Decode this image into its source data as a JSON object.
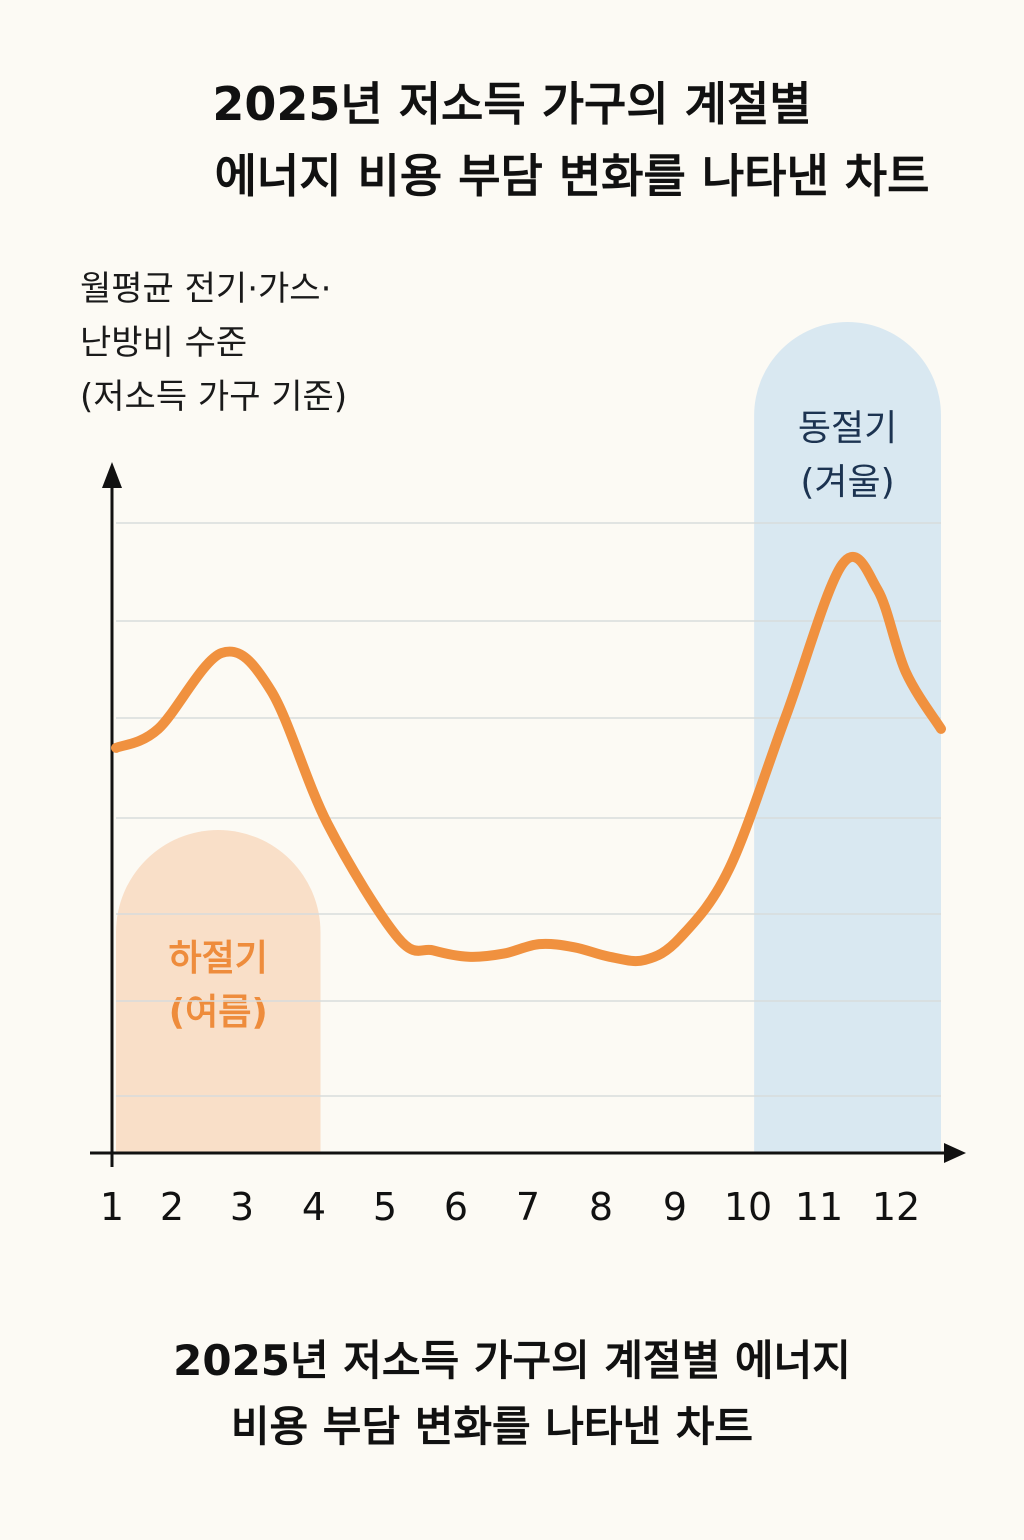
{
  "chart_data": {
    "type": "line",
    "title": "2025년 저소득 가구의 계절별 에너지 비용 부담 변화를 나타낸 차트",
    "title_lines": [
      "2025년 저소득 가구의 계절별",
      "에너지 비용 부담 변화를 나타낸 차트"
    ],
    "caption_lines": [
      "2025년 저소득 가구의 계절별 에너지",
      "비용 부담 변화를 나타낸 차트"
    ],
    "ylabel_lines": [
      "월평균 전기·가스·",
      "난방비 수준",
      "(저소득 가구 기준)"
    ],
    "xlabel": "",
    "x_ticks": [
      "1",
      "2",
      "3",
      "4",
      "5",
      "6",
      "7",
      "8",
      "9",
      "10",
      "11",
      "12"
    ],
    "xlim": [
      1,
      12.7
    ],
    "ylim": [
      0,
      100
    ],
    "grid": true,
    "series": [
      {
        "x": [
          1,
          1.6,
          2.5,
          3.2,
          4,
          5,
          5.5,
          6,
          6.5,
          7,
          7.5,
          8,
          8.5,
          9,
          9.7,
          10.5,
          11.3,
          11.8,
          12.2,
          12.7
        ],
        "values": [
          64,
          67,
          79,
          73,
          52,
          34,
          32,
          31,
          31.5,
          33,
          32.5,
          31,
          30.5,
          34,
          45,
          69,
          93,
          89,
          76,
          67
        ]
      }
    ],
    "regions": [
      {
        "label_lines": [
          "하절기",
          "(여름)"
        ],
        "x_start": 1,
        "x_end": 3.9,
        "color": "#f9dfc8",
        "text_color": "#ee8c3c"
      },
      {
        "label_lines": [
          "동절기",
          "(겨울)"
        ],
        "x_start": 10.05,
        "x_end": 12.7,
        "color": "#d9e8f1",
        "text_color": "#1c3351"
      }
    ],
    "line_color": "#f0913f"
  }
}
